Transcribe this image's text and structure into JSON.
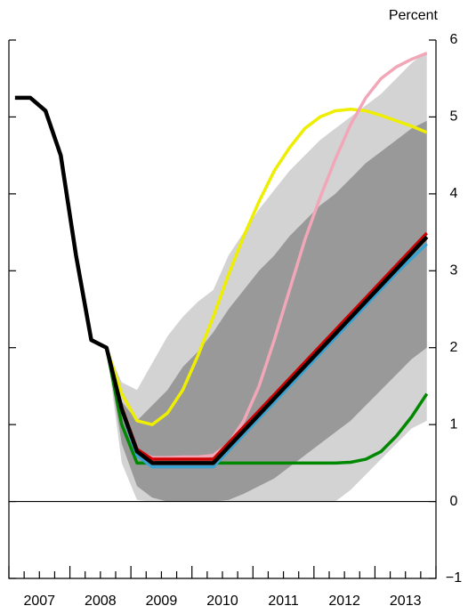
{
  "chart_data": {
    "type": "fan",
    "y_label": "Percent",
    "xlim": [
      2007,
      2014
    ],
    "xticks": [
      {
        "value": 2007.5,
        "label": "2007"
      },
      {
        "value": 2008.5,
        "label": "2008"
      },
      {
        "value": 2009.5,
        "label": "2009"
      },
      {
        "value": 2010.5,
        "label": "2010"
      },
      {
        "value": 2011.5,
        "label": "2011"
      },
      {
        "value": 2012.5,
        "label": "2012"
      },
      {
        "value": 2013.5,
        "label": "2013"
      }
    ],
    "ylim": [
      -1,
      6
    ],
    "yticks": [
      {
        "value": -1,
        "label": "−1"
      },
      0,
      1,
      2,
      3,
      4,
      5,
      6
    ],
    "zero_line": true,
    "x": [
      2007.1,
      2007.35,
      2007.6,
      2007.85,
      2008.1,
      2008.35,
      2008.6,
      2008.85,
      2009.1,
      2009.35,
      2009.6,
      2009.85,
      2010.1,
      2010.35,
      2010.6,
      2010.85,
      2011.1,
      2011.35,
      2011.6,
      2011.85,
      2012.1,
      2012.35,
      2012.6,
      2012.85,
      2013.1,
      2013.35,
      2013.6,
      2013.85
    ],
    "bands": [
      {
        "color": "#d3d3d3",
        "upper": [
          null,
          null,
          null,
          null,
          null,
          null,
          2.0,
          1.55,
          1.45,
          1.8,
          2.15,
          2.4,
          2.6,
          2.75,
          3.2,
          3.5,
          3.8,
          4.05,
          4.3,
          4.5,
          4.7,
          4.85,
          5.0,
          5.15,
          5.3,
          5.5,
          5.7,
          5.85
        ],
        "lower": [
          null,
          null,
          null,
          null,
          null,
          null,
          2.0,
          0.5,
          0.02,
          0,
          0,
          0,
          0,
          0,
          0,
          0,
          0,
          0,
          0,
          0,
          0,
          0,
          0.15,
          0.35,
          0.55,
          0.75,
          0.95,
          1.05
        ]
      },
      {
        "color": "#999999",
        "upper": [
          null,
          null,
          null,
          null,
          null,
          null,
          2.0,
          1.3,
          1.05,
          1.25,
          1.45,
          1.75,
          1.95,
          2.2,
          2.5,
          2.75,
          3.0,
          3.2,
          3.45,
          3.65,
          3.85,
          4.0,
          4.2,
          4.4,
          4.55,
          4.7,
          4.85,
          4.95
        ],
        "lower": [
          null,
          null,
          null,
          null,
          null,
          null,
          2.0,
          0.75,
          0.2,
          0.05,
          0,
          0,
          0,
          0,
          0.02,
          0.1,
          0.2,
          0.3,
          0.45,
          0.6,
          0.75,
          0.9,
          1.05,
          1.25,
          1.45,
          1.65,
          1.85,
          2.0
        ]
      }
    ],
    "series": [
      {
        "color": "#eeee00",
        "values": [
          null,
          null,
          null,
          null,
          null,
          null,
          2.0,
          1.4,
          1.05,
          1.0,
          1.15,
          1.45,
          1.9,
          2.4,
          2.95,
          3.45,
          3.9,
          4.3,
          4.6,
          4.85,
          5.0,
          5.08,
          5.1,
          5.08,
          5.02,
          4.95,
          4.88,
          4.8
        ]
      },
      {
        "color": "#f2a7b8",
        "values": [
          null,
          null,
          null,
          null,
          null,
          null,
          2.0,
          1.15,
          0.65,
          0.57,
          0.57,
          0.58,
          0.58,
          0.6,
          0.75,
          1.05,
          1.5,
          2.1,
          2.75,
          3.4,
          3.95,
          4.45,
          4.9,
          5.25,
          5.5,
          5.65,
          5.75,
          5.83
        ]
      },
      {
        "color": "#008800",
        "values": [
          null,
          null,
          null,
          null,
          null,
          null,
          2.0,
          1.0,
          0.5,
          0.5,
          0.5,
          0.5,
          0.5,
          0.5,
          0.5,
          0.5,
          0.5,
          0.5,
          0.5,
          0.5,
          0.5,
          0.5,
          0.51,
          0.55,
          0.65,
          0.85,
          1.1,
          1.4
        ]
      },
      {
        "color": "#cc0000",
        "values": [
          null,
          null,
          null,
          null,
          null,
          null,
          2.0,
          1.22,
          0.68,
          0.55,
          0.55,
          0.55,
          0.55,
          0.55,
          0.76,
          0.97,
          1.18,
          1.39,
          1.6,
          1.81,
          2.02,
          2.23,
          2.44,
          2.65,
          2.86,
          3.07,
          3.28,
          3.49
        ]
      },
      {
        "color": "#3aa2d0",
        "values": [
          null,
          null,
          null,
          null,
          null,
          null,
          2.0,
          1.18,
          0.6,
          0.45,
          0.45,
          0.45,
          0.45,
          0.45,
          0.66,
          0.87,
          1.08,
          1.29,
          1.5,
          1.71,
          1.92,
          2.13,
          2.34,
          2.55,
          2.76,
          2.97,
          3.16,
          3.35
        ]
      },
      {
        "color": "#000000",
        "values": [
          5.25,
          5.25,
          5.08,
          4.5,
          3.2,
          2.1,
          2.0,
          1.2,
          0.65,
          0.5,
          0.5,
          0.5,
          0.5,
          0.5,
          0.71,
          0.92,
          1.13,
          1.34,
          1.55,
          1.76,
          1.97,
          2.18,
          2.39,
          2.6,
          2.81,
          3.02,
          3.23,
          3.44
        ]
      }
    ]
  }
}
